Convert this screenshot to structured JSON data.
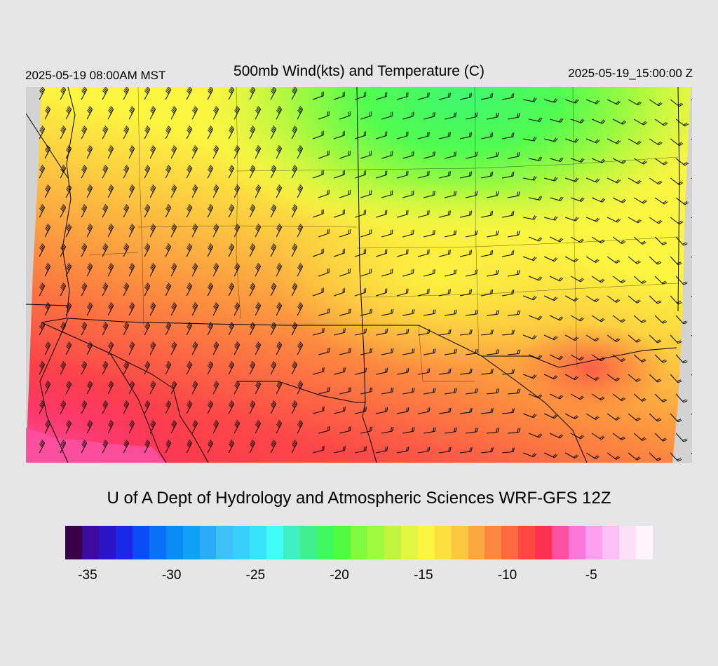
{
  "header": {
    "valid_local": "2025-05-19 08:00AM MST",
    "title": "500mb Wind(kts) and Temperature (C)",
    "valid_utc": "2025-05-19_15:00:00 Z"
  },
  "credit": "U of A Dept of Hydrology and Atmospheric Sciences WRF-GFS 12Z",
  "colorbar": {
    "colors": [
      "#3a0048",
      "#3d0aa0",
      "#2a14c8",
      "#1a28e6",
      "#0a4cf5",
      "#0a70f5",
      "#0a8cf5",
      "#10a0f5",
      "#2aacf8",
      "#40c0f8",
      "#38d0fa",
      "#38e4fa",
      "#40fcf4",
      "#40f0c0",
      "#40f090",
      "#40f860",
      "#50fc40",
      "#80fc40",
      "#a0fa40",
      "#c0f640",
      "#e0f640",
      "#fcf640",
      "#fce040",
      "#fcc840",
      "#fca840",
      "#fc8840",
      "#fc6840",
      "#fc4840",
      "#fc3050",
      "#fc50a0",
      "#fc78d8",
      "#fca0f0",
      "#fcc0f4",
      "#fce0f8",
      "#fdf4fc"
    ],
    "ticks": [
      "-35",
      "-30",
      "-25",
      "-20",
      "-15",
      "-10",
      "-5"
    ],
    "tick_values": [
      -35,
      -30,
      -25,
      -20,
      -15,
      -10,
      -5
    ],
    "min": -36,
    "max": -1
  },
  "map": {
    "description_colors": {
      "missing": "#d3d3d3",
      "barb": "#000000",
      "border": "#000000"
    }
  }
}
